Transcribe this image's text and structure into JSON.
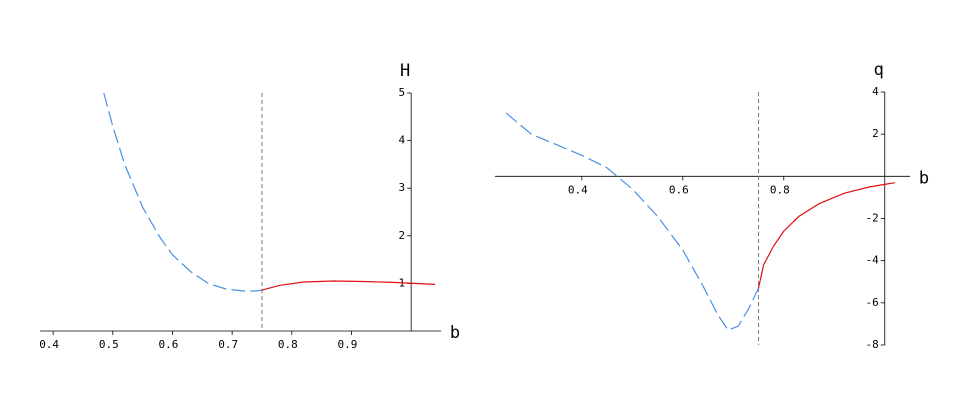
{
  "chart_data": [
    {
      "type": "line",
      "x_label": "b",
      "y_label": "H",
      "xlim": [
        0.378,
        1.05
      ],
      "ylim": [
        0,
        5
      ],
      "y_axis_x": 1,
      "xticks": [
        0.4,
        0.5,
        0.6,
        0.7,
        0.8,
        0.9
      ],
      "yticks": [
        1,
        2,
        3,
        4,
        5
      ],
      "vline_x": 0.75,
      "series": [
        {
          "color": "#4a90e2",
          "dashed": true,
          "x": [
            0.485,
            0.5,
            0.52,
            0.55,
            0.58,
            0.6,
            0.63,
            0.66,
            0.69,
            0.72,
            0.74,
            0.75
          ],
          "values": [
            5.0,
            4.3,
            3.5,
            2.6,
            1.95,
            1.6,
            1.25,
            1.0,
            0.88,
            0.84,
            0.84,
            0.86
          ]
        },
        {
          "color": "#e01010",
          "dashed": false,
          "x": [
            0.75,
            0.78,
            0.82,
            0.87,
            0.92,
            0.97,
            1.04
          ],
          "values": [
            0.86,
            0.96,
            1.03,
            1.05,
            1.04,
            1.02,
            0.98
          ]
        }
      ]
    },
    {
      "type": "line",
      "x_label": "b",
      "y_label": "q",
      "xlim": [
        0.228,
        1.05
      ],
      "ylim": [
        -8,
        4
      ],
      "y_axis_x": 1,
      "xticks": [
        0.4,
        0.6,
        0.8
      ],
      "yticks": [
        -8,
        -6,
        -4,
        -2,
        2,
        4
      ],
      "vline_x": 0.75,
      "series": [
        {
          "color": "#4a90e2",
          "dashed": true,
          "x": [
            0.25,
            0.3,
            0.35,
            0.4,
            0.45,
            0.5,
            0.55,
            0.6,
            0.64,
            0.67,
            0.69,
            0.71,
            0.73,
            0.75
          ],
          "values": [
            3.0,
            2.0,
            1.5,
            1.0,
            0.4,
            -0.6,
            -1.9,
            -3.5,
            -5.2,
            -6.6,
            -7.3,
            -7.1,
            -6.3,
            -5.3
          ]
        },
        {
          "color": "#e01010",
          "dashed": false,
          "x": [
            0.75,
            0.76,
            0.78,
            0.8,
            0.83,
            0.87,
            0.92,
            0.97,
            1.02
          ],
          "values": [
            -5.3,
            -4.2,
            -3.3,
            -2.6,
            -1.9,
            -1.3,
            -0.8,
            -0.5,
            -0.3
          ]
        }
      ]
    }
  ]
}
